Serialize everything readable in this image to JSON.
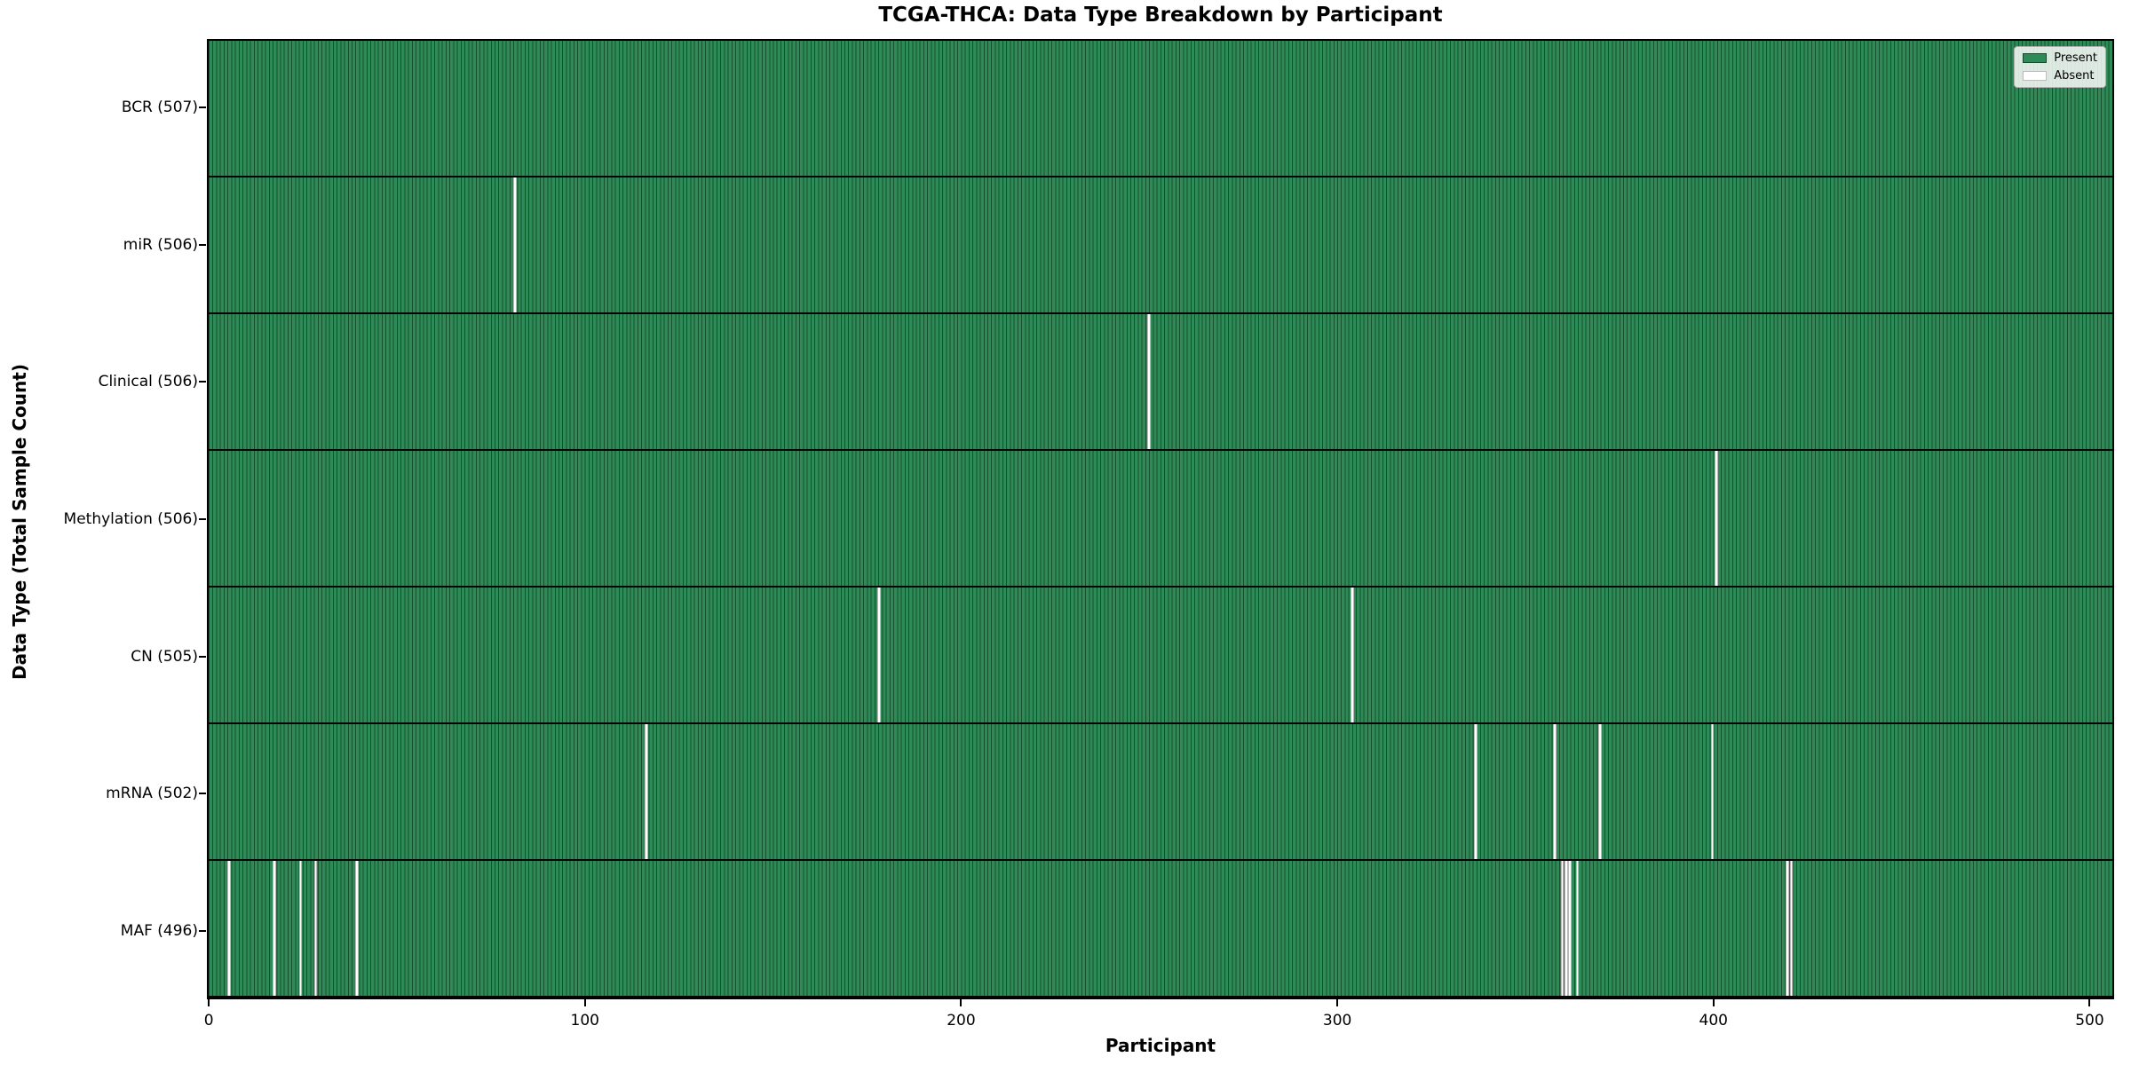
{
  "title": "TCGA-THCA: Data Type Breakdown by Participant",
  "xlabel": "Participant",
  "ylabel": "Data Type (Total Sample Count)",
  "legend": {
    "present_label": "Present",
    "absent_label": "Absent"
  },
  "colors": {
    "present": "#2e8b57",
    "bar_edge": "#16502d",
    "absent": "#ffffff",
    "row_divider": "#050505"
  },
  "chart_data": {
    "type": "heatmap",
    "title": "TCGA-THCA: Data Type Breakdown by Participant",
    "xlabel": "Participant",
    "ylabel": "Data Type (Total Sample Count)",
    "legend": [
      "Present",
      "Absent"
    ],
    "legend_position": "upper right",
    "grid": false,
    "total_participants": 507,
    "x_ticks": [
      0,
      100,
      200,
      300,
      400,
      500
    ],
    "x_range": [
      -0.5,
      506.5
    ],
    "rows": [
      {
        "name": "BCR",
        "label": "BCR (507)",
        "present_count": 507,
        "absent_participants": []
      },
      {
        "name": "miR",
        "label": "miR (506)",
        "present_count": 506,
        "absent_participants": [
          81
        ]
      },
      {
        "name": "Clinical",
        "label": "Clinical (506)",
        "present_count": 506,
        "absent_participants": [
          250
        ]
      },
      {
        "name": "Methylation",
        "label": "Methylation (506)",
        "present_count": 506,
        "absent_participants": [
          401
        ]
      },
      {
        "name": "CN",
        "label": "CN (505)",
        "present_count": 505,
        "absent_participants": [
          178,
          304
        ]
      },
      {
        "name": "mRNA",
        "label": "mRNA (502)",
        "present_count": 502,
        "absent_participants": [
          116,
          337,
          358,
          370,
          400
        ]
      },
      {
        "name": "MAF",
        "label": "MAF (496)",
        "present_count": 496,
        "absent_participants": [
          5,
          17,
          24,
          28,
          39,
          360,
          361,
          362,
          364,
          420,
          421
        ]
      }
    ]
  }
}
